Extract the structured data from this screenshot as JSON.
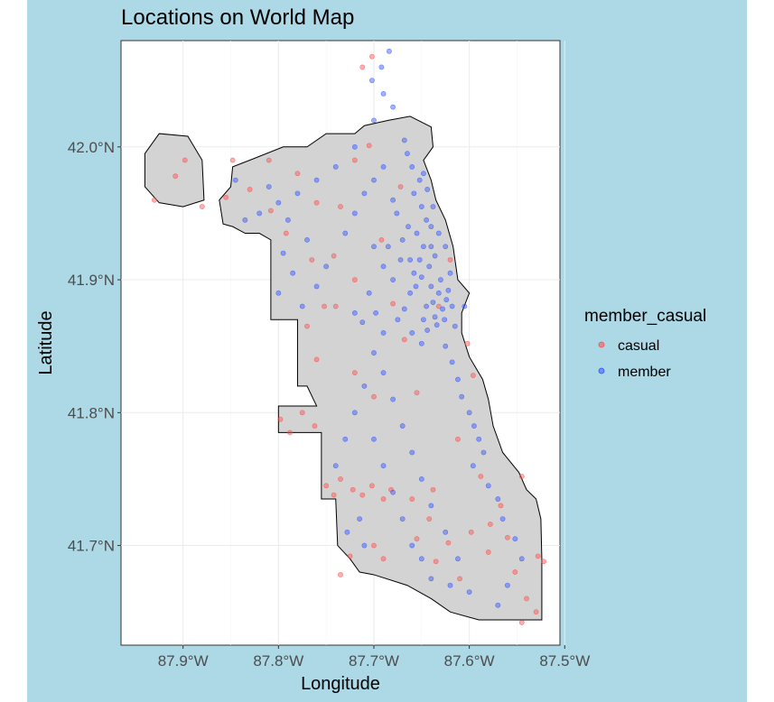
{
  "chart_data": {
    "type": "scatter",
    "title": "Locations on World Map",
    "xlabel": "Longitude",
    "ylabel": "Latitude",
    "xlim": [
      -87.965,
      -87.505
    ],
    "ylim": [
      41.625,
      42.08
    ],
    "x_ticks": [
      {
        "value": -87.9,
        "label": "87.9°W"
      },
      {
        "value": -87.8,
        "label": "87.8°W"
      },
      {
        "value": -87.7,
        "label": "87.7°W"
      },
      {
        "value": -87.6,
        "label": "87.6°W"
      },
      {
        "value": -87.5,
        "label": "87.5°W"
      }
    ],
    "y_ticks": [
      {
        "value": 42.0,
        "label": "42.0°N"
      },
      {
        "value": 41.9,
        "label": "41.9°N"
      },
      {
        "value": 41.8,
        "label": "41.8°N"
      },
      {
        "value": 41.7,
        "label": "41.7°N"
      }
    ],
    "grid": true,
    "legend": {
      "title": "member_casual",
      "placement": "right",
      "entries": [
        {
          "name": "casual",
          "color": "#ff4d4d"
        },
        {
          "name": "member",
          "color": "#3355ff"
        }
      ]
    },
    "map_fill": "#d3d3d3",
    "map_outline": [
      [
        -87.662,
        42.023
      ],
      [
        -87.64,
        42.015
      ],
      [
        -87.638,
        42.0
      ],
      [
        -87.648,
        41.99
      ],
      [
        -87.64,
        41.975
      ],
      [
        -87.635,
        41.96
      ],
      [
        -87.625,
        41.945
      ],
      [
        -87.617,
        41.925
      ],
      [
        -87.612,
        41.9
      ],
      [
        -87.6,
        41.89
      ],
      [
        -87.608,
        41.875
      ],
      [
        -87.608,
        41.86
      ],
      [
        -87.6,
        41.842
      ],
      [
        -87.586,
        41.825
      ],
      [
        -87.58,
        41.81
      ],
      [
        -87.575,
        41.79
      ],
      [
        -87.565,
        41.77
      ],
      [
        -87.548,
        41.755
      ],
      [
        -87.54,
        41.742
      ],
      [
        -87.53,
        41.735
      ],
      [
        -87.525,
        41.72
      ],
      [
        -87.524,
        41.69
      ],
      [
        -87.524,
        41.644
      ],
      [
        -87.59,
        41.644
      ],
      [
        -87.62,
        41.65
      ],
      [
        -87.64,
        41.66
      ],
      [
        -87.665,
        41.67
      ],
      [
        -87.7,
        41.678
      ],
      [
        -87.715,
        41.68
      ],
      [
        -87.725,
        41.69
      ],
      [
        -87.738,
        41.7
      ],
      [
        -87.74,
        41.735
      ],
      [
        -87.755,
        41.735
      ],
      [
        -87.755,
        41.785
      ],
      [
        -87.8,
        41.785
      ],
      [
        -87.8,
        41.805
      ],
      [
        -87.76,
        41.805
      ],
      [
        -87.77,
        41.82
      ],
      [
        -87.78,
        41.82
      ],
      [
        -87.78,
        41.87
      ],
      [
        -87.808,
        41.87
      ],
      [
        -87.808,
        41.93
      ],
      [
        -87.82,
        41.935
      ],
      [
        -87.835,
        41.935
      ],
      [
        -87.848,
        41.94
      ],
      [
        -87.858,
        41.942
      ],
      [
        -87.862,
        41.96
      ],
      [
        -87.85,
        41.97
      ],
      [
        -87.848,
        41.985
      ],
      [
        -87.83,
        41.99
      ],
      [
        -87.795,
        42.0
      ],
      [
        -87.77,
        42.0
      ],
      [
        -87.75,
        42.01
      ],
      [
        -87.72,
        42.01
      ],
      [
        -87.71,
        42.016
      ],
      [
        -87.685,
        42.02
      ]
    ],
    "airport_outline": [
      [
        -87.94,
        41.995
      ],
      [
        -87.925,
        42.01
      ],
      [
        -87.895,
        42.008
      ],
      [
        -87.88,
        41.99
      ],
      [
        -87.878,
        41.96
      ],
      [
        -87.9,
        41.955
      ],
      [
        -87.925,
        41.958
      ],
      [
        -87.94,
        41.97
      ]
    ],
    "series": [
      {
        "name": "casual",
        "color": "#ff4d4d",
        "points": [
          [
            -87.93,
            41.96
          ],
          [
            -87.908,
            41.978
          ],
          [
            -87.898,
            41.99
          ],
          [
            -87.88,
            41.955
          ],
          [
            -87.855,
            41.962
          ],
          [
            -87.848,
            41.99
          ],
          [
            -87.83,
            41.968
          ],
          [
            -87.81,
            41.99
          ],
          [
            -87.808,
            41.952
          ],
          [
            -87.792,
            41.935
          ],
          [
            -87.78,
            41.98
          ],
          [
            -87.76,
            41.958
          ],
          [
            -87.752,
            41.88
          ],
          [
            -87.742,
            41.918
          ],
          [
            -87.735,
            41.955
          ],
          [
            -87.72,
            41.99
          ],
          [
            -87.705,
            42.001
          ],
          [
            -87.692,
            41.93
          ],
          [
            -87.68,
            41.882
          ],
          [
            -87.672,
            41.97
          ],
          [
            -87.712,
            42.06
          ],
          [
            -87.702,
            42.068
          ],
          [
            -87.798,
            41.795
          ],
          [
            -87.788,
            41.785
          ],
          [
            -87.775,
            41.8
          ],
          [
            -87.762,
            41.79
          ],
          [
            -87.75,
            41.745
          ],
          [
            -87.742,
            41.738
          ],
          [
            -87.735,
            41.75
          ],
          [
            -87.722,
            41.742
          ],
          [
            -87.712,
            41.738
          ],
          [
            -87.702,
            41.745
          ],
          [
            -87.69,
            41.735
          ],
          [
            -87.682,
            41.742
          ],
          [
            -87.66,
            41.735
          ],
          [
            -87.635,
            41.688
          ],
          [
            -87.622,
            41.702
          ],
          [
            -87.61,
            41.675
          ],
          [
            -87.598,
            41.71
          ],
          [
            -87.58,
            41.695
          ],
          [
            -87.552,
            41.68
          ],
          [
            -87.54,
            41.66
          ],
          [
            -87.528,
            41.692
          ],
          [
            -87.522,
            41.688
          ],
          [
            -87.53,
            41.65
          ],
          [
            -87.545,
            41.642
          ],
          [
            -87.56,
            41.706
          ],
          [
            -87.588,
            41.752
          ],
          [
            -87.612,
            41.78
          ],
          [
            -87.638,
            41.742
          ],
          [
            -87.655,
            41.815
          ],
          [
            -87.668,
            41.855
          ],
          [
            -87.72,
            41.9
          ],
          [
            -87.74,
            41.88
          ],
          [
            -87.765,
            41.915
          ],
          [
            -87.77,
            41.865
          ],
          [
            -87.76,
            41.84
          ],
          [
            -87.7,
            41.812
          ],
          [
            -87.72,
            41.83
          ],
          [
            -87.69,
            41.69
          ],
          [
            -87.7,
            41.7
          ],
          [
            -87.725,
            41.692
          ],
          [
            -87.735,
            41.678
          ],
          [
            -87.655,
            41.705
          ],
          [
            -87.642,
            41.72
          ],
          [
            -87.578,
            41.716
          ],
          [
            -87.567,
            41.73
          ],
          [
            -87.545,
            41.752
          ],
          [
            -87.596,
            41.828
          ],
          [
            -87.602,
            41.852
          ],
          [
            -87.62,
            41.915
          ],
          [
            -87.632,
            41.88
          ]
        ]
      },
      {
        "name": "member",
        "color": "#3355ff",
        "points": [
          [
            -87.638,
            41.883
          ],
          [
            -87.632,
            41.89
          ],
          [
            -87.628,
            41.878
          ],
          [
            -87.624,
            41.885
          ],
          [
            -87.64,
            41.895
          ],
          [
            -87.636,
            41.872
          ],
          [
            -87.63,
            41.9
          ],
          [
            -87.622,
            41.892
          ],
          [
            -87.645,
            41.88
          ],
          [
            -87.634,
            41.866
          ],
          [
            -87.626,
            41.87
          ],
          [
            -87.618,
            41.88
          ],
          [
            -87.65,
            41.902
          ],
          [
            -87.642,
            41.91
          ],
          [
            -87.636,
            41.918
          ],
          [
            -87.648,
            41.925
          ],
          [
            -87.655,
            41.935
          ],
          [
            -87.645,
            41.945
          ],
          [
            -87.65,
            41.955
          ],
          [
            -87.658,
            41.965
          ],
          [
            -87.652,
            41.975
          ],
          [
            -87.66,
            41.985
          ],
          [
            -87.665,
            41.995
          ],
          [
            -87.668,
            42.005
          ],
          [
            -87.64,
            41.94
          ],
          [
            -87.638,
            41.955
          ],
          [
            -87.644,
            41.968
          ],
          [
            -87.648,
            41.98
          ],
          [
            -87.662,
            41.89
          ],
          [
            -87.668,
            41.878
          ],
          [
            -87.675,
            41.87
          ],
          [
            -87.66,
            41.86
          ],
          [
            -87.65,
            41.852
          ],
          [
            -87.644,
            41.862
          ],
          [
            -87.68,
            41.9
          ],
          [
            -87.69,
            41.91
          ],
          [
            -87.685,
            41.925
          ],
          [
            -87.672,
            41.915
          ],
          [
            -87.664,
            41.94
          ],
          [
            -87.676,
            41.95
          ],
          [
            -87.7,
            41.925
          ],
          [
            -87.705,
            41.89
          ],
          [
            -87.698,
            41.875
          ],
          [
            -87.712,
            41.868
          ],
          [
            -87.72,
            41.875
          ],
          [
            -87.69,
            41.86
          ],
          [
            -87.625,
            41.85
          ],
          [
            -87.618,
            41.838
          ],
          [
            -87.612,
            41.825
          ],
          [
            -87.608,
            41.812
          ],
          [
            -87.6,
            41.8
          ],
          [
            -87.595,
            41.79
          ],
          [
            -87.59,
            41.78
          ],
          [
            -87.585,
            41.77
          ],
          [
            -87.596,
            41.76
          ],
          [
            -87.58,
            41.745
          ],
          [
            -87.57,
            41.735
          ],
          [
            -87.565,
            41.72
          ],
          [
            -87.552,
            41.705
          ],
          [
            -87.545,
            41.69
          ],
          [
            -87.56,
            41.67
          ],
          [
            -87.57,
            41.655
          ],
          [
            -87.6,
            41.665
          ],
          [
            -87.612,
            41.69
          ],
          [
            -87.625,
            41.71
          ],
          [
            -87.64,
            41.73
          ],
          [
            -87.65,
            41.75
          ],
          [
            -87.66,
            41.77
          ],
          [
            -87.67,
            41.79
          ],
          [
            -87.68,
            41.81
          ],
          [
            -87.69,
            41.83
          ],
          [
            -87.7,
            41.845
          ],
          [
            -87.71,
            41.82
          ],
          [
            -87.72,
            41.8
          ],
          [
            -87.73,
            41.78
          ],
          [
            -87.74,
            41.76
          ],
          [
            -87.7,
            41.78
          ],
          [
            -87.69,
            41.76
          ],
          [
            -87.68,
            41.74
          ],
          [
            -87.67,
            41.72
          ],
          [
            -87.66,
            41.7
          ],
          [
            -87.65,
            41.69
          ],
          [
            -87.64,
            41.675
          ],
          [
            -87.62,
            41.67
          ],
          [
            -87.71,
            41.7
          ],
          [
            -87.715,
            41.72
          ],
          [
            -87.728,
            41.71
          ],
          [
            -87.702,
            42.05
          ],
          [
            -87.69,
            42.04
          ],
          [
            -87.68,
            42.03
          ],
          [
            -87.692,
            42.06
          ],
          [
            -87.684,
            42.072
          ],
          [
            -87.7,
            42.02
          ],
          [
            -87.72,
            42.0
          ],
          [
            -87.74,
            41.985
          ],
          [
            -87.76,
            41.975
          ],
          [
            -87.78,
            41.965
          ],
          [
            -87.8,
            41.958
          ],
          [
            -87.82,
            41.95
          ],
          [
            -87.835,
            41.945
          ],
          [
            -87.845,
            41.975
          ],
          [
            -87.81,
            41.97
          ],
          [
            -87.79,
            41.945
          ],
          [
            -87.77,
            41.93
          ],
          [
            -87.75,
            41.91
          ],
          [
            -87.76,
            41.895
          ],
          [
            -87.775,
            41.88
          ],
          [
            -87.785,
            41.905
          ],
          [
            -87.795,
            41.92
          ],
          [
            -87.8,
            41.89
          ],
          [
            -87.73,
            41.935
          ],
          [
            -87.72,
            41.95
          ],
          [
            -87.71,
            41.965
          ],
          [
            -87.7,
            41.975
          ],
          [
            -87.69,
            41.985
          ],
          [
            -87.68,
            41.96
          ],
          [
            -87.67,
            41.93
          ],
          [
            -87.662,
            41.915
          ],
          [
            -87.656,
            41.895
          ],
          [
            -87.648,
            41.87
          ],
          [
            -87.615,
            41.865
          ],
          [
            -87.605,
            41.88
          ],
          [
            -87.62,
            41.905
          ],
          [
            -87.625,
            41.925
          ],
          [
            -87.632,
            41.935
          ],
          [
            -87.64,
            41.925
          ],
          [
            -87.652,
            41.915
          ],
          [
            -87.658,
            41.905
          ]
        ]
      }
    ]
  }
}
